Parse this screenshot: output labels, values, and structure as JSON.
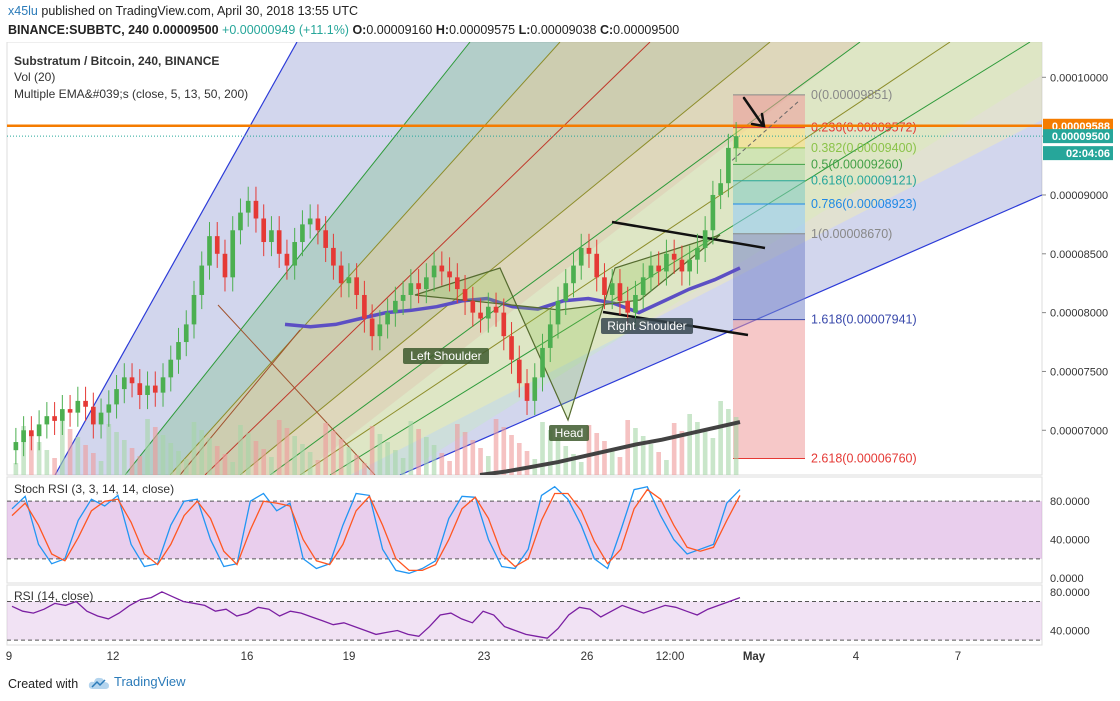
{
  "header": {
    "author": "x45lu",
    "published": "published on TradingView.com, April 30, 2018 13:55 UTC",
    "symbol": "BINANCE:SUBBTC, 240",
    "last": "0.00009500",
    "change": "+0.00000949 (+11.1%)",
    "o_label": "O:",
    "o": "0.00009160",
    "h_label": "H:",
    "h": "0.00009575",
    "l_label": "L:",
    "l": "0.00009038",
    "c_label": "C:",
    "c": "0.00009500"
  },
  "footer": {
    "created": "Created with",
    "brand": "TradingView"
  },
  "chart_data": {
    "type": "candlestick",
    "title": "Substratum / Bitcoin, 240, BINANCE",
    "indicators_labels": [
      "Vol (20)",
      "Multiple EMA&#039;s (close, 5, 13, 50, 200)"
    ],
    "y_ticks": [
      "0.00010000",
      "0.00009500",
      "0.00009000",
      "0.00008500",
      "0.00008000",
      "0.00007500",
      "0.00007000"
    ],
    "y_tick_values": [
      0.0001,
      9.5e-05,
      9e-05,
      8.5e-05,
      8e-05,
      7.5e-05,
      7e-05
    ],
    "ylim": [
      6.62e-05,
      0.000103
    ],
    "x_ticks": [
      "9",
      "12",
      "16",
      "19",
      "23",
      "26",
      "12:00",
      "May",
      "4",
      "7"
    ],
    "price_badges": [
      {
        "text": "0.00009588",
        "color": "#f57c00",
        "value": 9.588e-05
      },
      {
        "text": "0.00009500",
        "color": "#26a69a",
        "value": 9.5e-05
      },
      {
        "text": "02:04:06",
        "color": "#26a69a"
      }
    ],
    "resistance_level": 9.588e-05,
    "fib_levels": [
      {
        "ratio": "0",
        "text": "0(0.00009851)",
        "value": 9.851e-05,
        "color": "#888888"
      },
      {
        "ratio": "0.236",
        "text": "0.236(0.00009572)",
        "value": 9.572e-05,
        "color": "#e53935"
      },
      {
        "ratio": "0.382",
        "text": "0.382(0.00009400)",
        "value": 9.4e-05,
        "color": "#8bc34a"
      },
      {
        "ratio": "0.5",
        "text": "0.5(0.00009260)",
        "value": 9.26e-05,
        "color": "#43a047"
      },
      {
        "ratio": "0.618",
        "text": "0.618(0.00009121)",
        "value": 9.121e-05,
        "color": "#26a69a"
      },
      {
        "ratio": "0.786",
        "text": "0.786(0.00008923)",
        "value": 8.923e-05,
        "color": "#1e88e5"
      },
      {
        "ratio": "1",
        "text": "1(0.00008670)",
        "value": 8.67e-05,
        "color": "#888888"
      },
      {
        "ratio": "1.618",
        "text": "1.618(0.00007941)",
        "value": 7.941e-05,
        "color": "#3949ab"
      },
      {
        "ratio": "2.618",
        "text": "2.618(0.00006760)",
        "value": 6.76e-05,
        "color": "#e53935"
      }
    ],
    "pattern_labels": {
      "left_shoulder": "Left Shoulder",
      "head": "Head",
      "right_shoulder": "Right Shoulder"
    },
    "candle_closes": [
      6.9e-05,
      7e-05,
      6.95e-05,
      7.05e-05,
      7.12e-05,
      7.08e-05,
      7.18e-05,
      7.15e-05,
      7.25e-05,
      7.2e-05,
      7.05e-05,
      7.15e-05,
      7.22e-05,
      7.35e-05,
      7.45e-05,
      7.4e-05,
      7.3e-05,
      7.38e-05,
      7.32e-05,
      7.45e-05,
      7.6e-05,
      7.75e-05,
      7.9e-05,
      8.15e-05,
      8.4e-05,
      8.65e-05,
      8.5e-05,
      8.3e-05,
      8.7e-05,
      8.85e-05,
      8.95e-05,
      8.8e-05,
      8.6e-05,
      8.7e-05,
      8.5e-05,
      8.4e-05,
      8.6e-05,
      8.75e-05,
      8.8e-05,
      8.7e-05,
      8.55e-05,
      8.4e-05,
      8.25e-05,
      8.3e-05,
      8.15e-05,
      7.95e-05,
      7.8e-05,
      7.9e-05,
      8e-05,
      8.1e-05,
      8.15e-05,
      8.25e-05,
      8.2e-05,
      8.3e-05,
      8.4e-05,
      8.35e-05,
      8.3e-05,
      8.2e-05,
      8.1e-05,
      8e-05,
      7.95e-05,
      8.05e-05,
      8e-05,
      7.8e-05,
      7.6e-05,
      7.4e-05,
      7.25e-05,
      7.45e-05,
      7.7e-05,
      7.9e-05,
      8.1e-05,
      8.25e-05,
      8.4e-05,
      8.55e-05,
      8.5e-05,
      8.3e-05,
      8.15e-05,
      8.25e-05,
      8.1e-05,
      8e-05,
      8.15e-05,
      8.3e-05,
      8.4e-05,
      8.35e-05,
      8.5e-05,
      8.45e-05,
      8.35e-05,
      8.45e-05,
      8.55e-05,
      8.7e-05,
      9e-05,
      9.1e-05,
      9.4e-05,
      9.5e-05
    ],
    "ema_fast": [
      7.9e-05,
      7.88e-05,
      7.9e-05,
      7.95e-05,
      8e-05,
      8.02e-05,
      8.05e-05,
      8.1e-05,
      8.12e-05,
      8.05e-05,
      8.03e-05,
      8.1e-05,
      8.12e-05,
      8.08e-05,
      8e-05,
      8.1e-05,
      8.2e-05,
      8.28e-05,
      8.38e-05
    ],
    "ema_slow": [
      6.62e-05,
      6.65e-05,
      6.69e-05,
      6.73e-05,
      6.78e-05,
      6.83e-05,
      6.88e-05,
      6.92e-05,
      6.97e-05,
      7.02e-05,
      7.07e-05
    ],
    "stoch_rsi": {
      "label": "Stoch RSI (3, 3, 14, 14, close)",
      "ticks": [
        "80.0000",
        "40.0000",
        "0.0000"
      ],
      "tick_values": [
        80,
        40,
        0
      ],
      "band": [
        20,
        80
      ],
      "k": [
        72,
        85,
        35,
        15,
        20,
        60,
        82,
        75,
        86,
        35,
        12,
        15,
        55,
        80,
        82,
        40,
        12,
        15,
        80,
        88,
        70,
        78,
        20,
        10,
        15,
        55,
        88,
        86,
        30,
        8,
        5,
        10,
        18,
        62,
        85,
        84,
        40,
        12,
        10,
        30,
        86,
        95,
        82,
        55,
        20,
        10,
        50,
        92,
        95,
        65,
        40,
        25,
        30,
        35,
        78,
        92
      ],
      "d": [
        65,
        78,
        55,
        25,
        18,
        42,
        70,
        80,
        82,
        58,
        25,
        14,
        35,
        65,
        80,
        62,
        28,
        14,
        50,
        80,
        78,
        75,
        40,
        18,
        14,
        35,
        70,
        85,
        55,
        20,
        8,
        8,
        14,
        40,
        72,
        84,
        62,
        25,
        12,
        20,
        60,
        88,
        88,
        70,
        38,
        15,
        30,
        72,
        92,
        82,
        55,
        32,
        28,
        32,
        60,
        86
      ]
    },
    "rsi": {
      "label": "RSI (14, close)",
      "ticks": [
        "80.0000",
        "40.0000"
      ],
      "tick_values": [
        80,
        40
      ],
      "band": [
        30,
        70
      ],
      "values": [
        65,
        60,
        58,
        62,
        68,
        66,
        70,
        60,
        55,
        52,
        58,
        66,
        72,
        74,
        80,
        75,
        70,
        68,
        66,
        60,
        62,
        55,
        58,
        64,
        62,
        55,
        60,
        58,
        54,
        50,
        46,
        48,
        44,
        40,
        36,
        38,
        40,
        36,
        34,
        44,
        56,
        58,
        52,
        48,
        60,
        56,
        44,
        40,
        36,
        34,
        32,
        42,
        56,
        64,
        62,
        54,
        60,
        66,
        62,
        58,
        62,
        66,
        64,
        60,
        56,
        62,
        66,
        70,
        74
      ]
    }
  }
}
